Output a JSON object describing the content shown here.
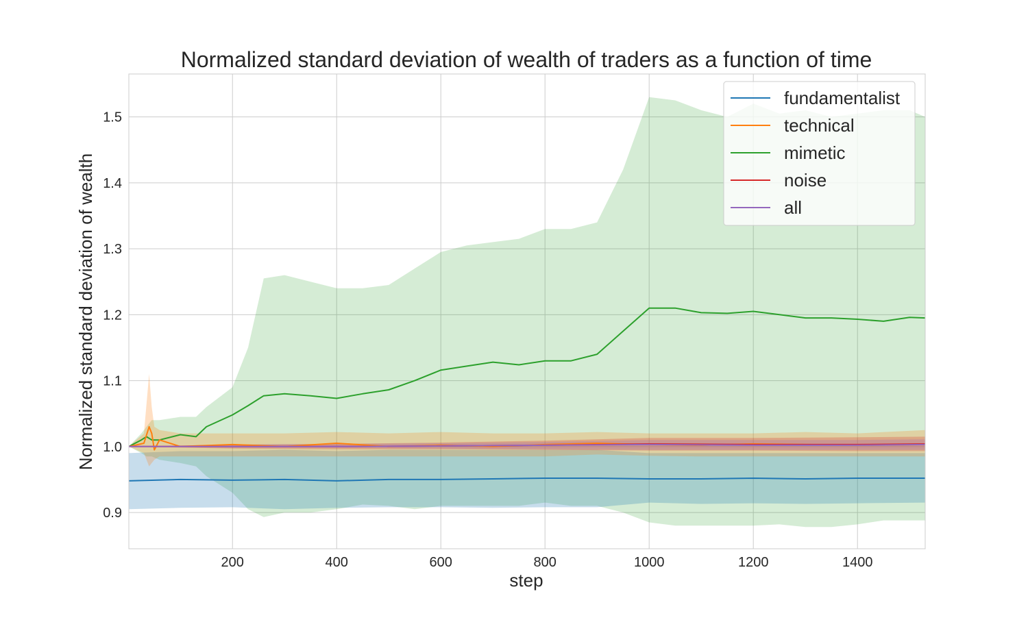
{
  "chart_data": {
    "type": "line",
    "title": "Normalized standard deviation of wealth of traders as a function of time",
    "xlabel": "step",
    "ylabel": "Normalized standard deviation of wealth",
    "xlim": [
      1,
      1530
    ],
    "ylim": [
      0.845,
      1.565
    ],
    "xticks": [
      200,
      400,
      600,
      800,
      1000,
      1200,
      1400
    ],
    "yticks": [
      0.9,
      1.0,
      1.1,
      1.2,
      1.3,
      1.4,
      1.5
    ],
    "grid": true,
    "legend_position": "top-right",
    "series": [
      {
        "name": "fundamentalist",
        "color": "#1f77b4",
        "x": [
          1,
          100,
          200,
          300,
          400,
          500,
          600,
          700,
          800,
          900,
          1000,
          1100,
          1200,
          1300,
          1400,
          1530
        ],
        "values": [
          0.948,
          0.95,
          0.949,
          0.95,
          0.948,
          0.95,
          0.95,
          0.951,
          0.952,
          0.952,
          0.951,
          0.951,
          0.952,
          0.951,
          0.952,
          0.952
        ],
        "band_lower": [
          0.905,
          0.907,
          0.908,
          0.905,
          0.907,
          0.908,
          0.908,
          0.907,
          0.908,
          0.908,
          0.915,
          0.913,
          0.914,
          0.913,
          0.914,
          0.915
        ],
        "band_upper": [
          0.99,
          0.993,
          0.993,
          0.995,
          0.993,
          0.995,
          0.995,
          0.995,
          0.995,
          0.995,
          0.99,
          0.99,
          0.99,
          0.99,
          0.99,
          0.99
        ]
      },
      {
        "name": "technical",
        "color": "#ff7f0e",
        "x": [
          1,
          30,
          40,
          45,
          50,
          60,
          100,
          200,
          300,
          400,
          500,
          600,
          700,
          800,
          900,
          1000,
          1100,
          1200,
          1300,
          1400,
          1530
        ],
        "values": [
          1.0,
          1.005,
          1.03,
          1.02,
          0.995,
          1.01,
          1.0,
          1.003,
          1.0,
          1.005,
          1.0,
          1.002,
          1.0,
          1.003,
          1.005,
          1.003,
          1.002,
          1.004,
          1.003,
          1.002,
          1.003
        ],
        "band_lower": [
          1.0,
          0.99,
          0.97,
          0.975,
          0.98,
          0.985,
          0.985,
          0.985,
          0.985,
          0.985,
          0.985,
          0.985,
          0.985,
          0.985,
          0.988,
          0.986,
          0.985,
          0.985,
          0.985,
          0.985,
          0.985
        ],
        "band_upper": [
          1.0,
          1.02,
          1.11,
          1.06,
          1.03,
          1.025,
          1.02,
          1.02,
          1.02,
          1.022,
          1.02,
          1.022,
          1.02,
          1.02,
          1.022,
          1.02,
          1.02,
          1.02,
          1.022,
          1.02,
          1.025
        ]
      },
      {
        "name": "mimetic",
        "color": "#2ca02c",
        "x": [
          1,
          25,
          35,
          45,
          60,
          100,
          130,
          150,
          200,
          230,
          260,
          300,
          350,
          400,
          450,
          500,
          550,
          600,
          650,
          700,
          750,
          800,
          850,
          900,
          950,
          1000,
          1050,
          1100,
          1150,
          1200,
          1250,
          1300,
          1350,
          1400,
          1450,
          1500,
          1530
        ],
        "values": [
          1.0,
          1.01,
          1.015,
          1.01,
          1.01,
          1.018,
          1.015,
          1.03,
          1.048,
          1.062,
          1.077,
          1.08,
          1.077,
          1.073,
          1.08,
          1.086,
          1.1,
          1.116,
          1.122,
          1.128,
          1.124,
          1.13,
          1.13,
          1.14,
          1.175,
          1.21,
          1.21,
          1.203,
          1.202,
          1.205,
          1.2,
          1.195,
          1.195,
          1.193,
          1.19,
          1.196,
          1.195
        ],
        "band_lower": [
          1.0,
          0.99,
          0.985,
          0.985,
          0.98,
          0.975,
          0.97,
          0.955,
          0.93,
          0.905,
          0.893,
          0.9,
          0.9,
          0.905,
          0.912,
          0.91,
          0.905,
          0.91,
          0.91,
          0.91,
          0.91,
          0.915,
          0.91,
          0.91,
          0.9,
          0.885,
          0.88,
          0.88,
          0.88,
          0.88,
          0.882,
          0.878,
          0.878,
          0.882,
          0.888,
          0.888,
          0.888
        ],
        "band_upper": [
          1.0,
          1.02,
          1.03,
          1.04,
          1.04,
          1.045,
          1.045,
          1.06,
          1.09,
          1.15,
          1.255,
          1.26,
          1.25,
          1.24,
          1.24,
          1.245,
          1.27,
          1.295,
          1.305,
          1.31,
          1.315,
          1.33,
          1.33,
          1.34,
          1.42,
          1.53,
          1.525,
          1.51,
          1.5,
          1.52,
          1.505,
          1.51,
          1.5,
          1.505,
          1.51,
          1.51,
          1.5
        ]
      },
      {
        "name": "noise",
        "color": "#d62728",
        "x": [
          1,
          200,
          400,
          600,
          800,
          1000,
          1200,
          1400,
          1530
        ],
        "values": [
          1.0,
          1.0,
          1.0,
          1.001,
          1.002,
          1.004,
          1.003,
          1.003,
          1.004
        ],
        "band_lower": [
          1.0,
          0.997,
          0.996,
          0.996,
          0.995,
          0.994,
          0.994,
          0.993,
          0.993
        ],
        "band_upper": [
          1.0,
          1.003,
          1.004,
          1.006,
          1.009,
          1.013,
          1.013,
          1.014,
          1.015
        ]
      },
      {
        "name": "all",
        "color": "#9467bd",
        "x": [
          1,
          200,
          400,
          600,
          800,
          1000,
          1200,
          1400,
          1530
        ],
        "values": [
          1.0,
          1.0,
          1.0,
          1.001,
          1.002,
          1.003,
          1.002,
          1.002,
          1.003
        ],
        "band_lower": [
          1.0,
          0.998,
          0.998,
          0.997,
          0.996,
          0.995,
          0.995,
          0.995,
          0.995
        ],
        "band_upper": [
          1.0,
          1.003,
          1.004,
          1.005,
          1.007,
          1.01,
          1.01,
          1.01,
          1.011
        ]
      }
    ]
  }
}
